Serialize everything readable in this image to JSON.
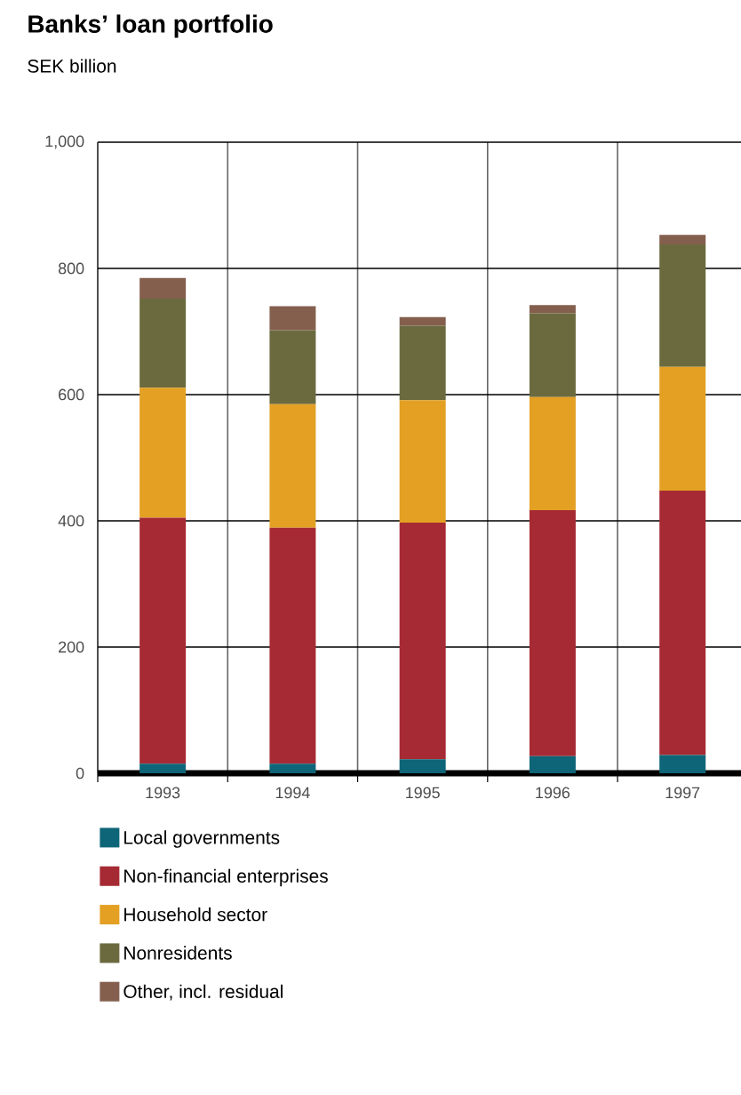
{
  "chart_data": {
    "type": "bar",
    "title": "Banks’ loan portfolio",
    "subtitle": "SEK billion",
    "stacked": true,
    "categories": [
      "1993",
      "1994",
      "1995",
      "1996",
      "1997"
    ],
    "series": [
      {
        "name": "Local governments",
        "color": "#0e6577",
        "values": [
          15,
          15,
          22,
          27,
          29
        ]
      },
      {
        "name": "Non-financial enterprises",
        "color": "#a62a33",
        "values": [
          390,
          374,
          375,
          390,
          419
        ]
      },
      {
        "name": "Household sector",
        "color": "#e3a023",
        "values": [
          206,
          196,
          194,
          179,
          196
        ]
      },
      {
        "name": "Nonresidents",
        "color": "#6b6a3e",
        "values": [
          141,
          117,
          118,
          133,
          194
        ]
      },
      {
        "name": "Other, incl. residual",
        "color": "#845f4e",
        "values": [
          33,
          38,
          14,
          13,
          15
        ]
      }
    ],
    "ylim": [
      0,
      1000
    ],
    "yticks": [
      0,
      200,
      400,
      600,
      800,
      {
        "value": 1000,
        "label": "1,000"
      }
    ],
    "grid": true,
    "legend": "bottom"
  }
}
